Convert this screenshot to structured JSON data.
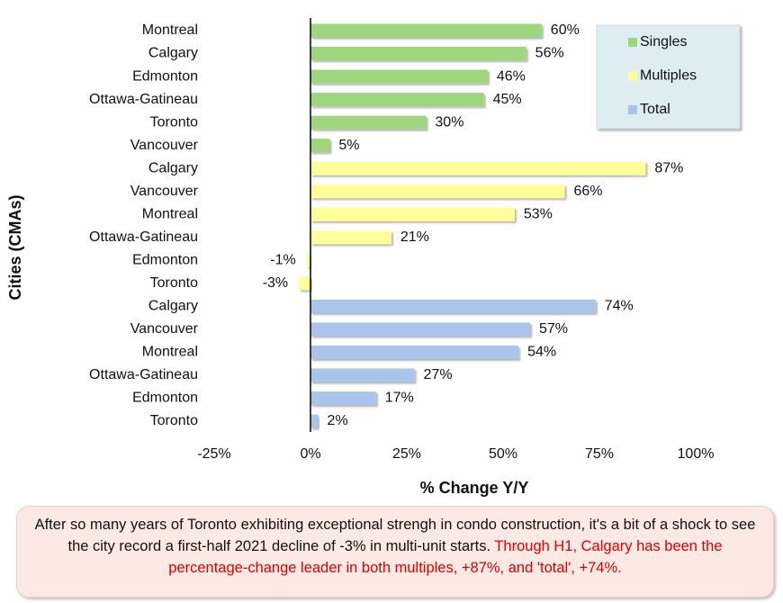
{
  "chart_data": {
    "type": "bar",
    "orientation": "horizontal",
    "categories": [
      "Montreal",
      "Calgary",
      "Edmonton",
      "Ottawa-Gatineau",
      "Toronto",
      "Vancouver",
      "Calgary",
      "Vancouver",
      "Montreal",
      "Ottawa-Gatineau",
      "Edmonton",
      "Toronto",
      "Calgary",
      "Vancouver",
      "Montreal",
      "Ottawa-Gatineau",
      "Edmonton",
      "Toronto"
    ],
    "series": [
      {
        "name": "Singles",
        "color": "#9dd67c",
        "values": [
          60,
          56,
          46,
          45,
          30,
          5,
          null,
          null,
          null,
          null,
          null,
          null,
          null,
          null,
          null,
          null,
          null,
          null
        ],
        "value_labels": [
          "60%",
          "56%",
          "46%",
          "45%",
          "30%",
          "5%",
          null,
          null,
          null,
          null,
          null,
          null,
          null,
          null,
          null,
          null,
          null,
          null
        ]
      },
      {
        "name": "Multiples",
        "color": "#ffff99",
        "values": [
          null,
          null,
          null,
          null,
          null,
          null,
          87,
          66,
          53,
          21,
          -1,
          -3,
          null,
          null,
          null,
          null,
          null,
          null
        ],
        "value_labels": [
          null,
          null,
          null,
          null,
          null,
          null,
          "87%",
          "66%",
          "53%",
          "21%",
          "-1%",
          "-3%",
          null,
          null,
          null,
          null,
          null,
          null
        ]
      },
      {
        "name": "Total",
        "color": "#a9c5ec",
        "values": [
          null,
          null,
          null,
          null,
          null,
          null,
          null,
          null,
          null,
          null,
          null,
          null,
          74,
          57,
          54,
          27,
          17,
          2
        ],
        "value_labels": [
          null,
          null,
          null,
          null,
          null,
          null,
          null,
          null,
          null,
          null,
          null,
          null,
          "74%",
          "57%",
          "54%",
          "27%",
          "17%",
          "2%"
        ]
      }
    ],
    "xlabel": "% Change Y/Y",
    "ylabel": "Cities (CMAs)",
    "xlim": [
      -25,
      100
    ],
    "xticks": [
      {
        "value": -25,
        "label": "-25%"
      },
      {
        "value": 0,
        "label": "0%"
      },
      {
        "value": 25,
        "label": "25%"
      },
      {
        "value": 50,
        "label": "50%"
      },
      {
        "value": 75,
        "label": "75%"
      },
      {
        "value": 100,
        "label": "100%"
      }
    ],
    "legend": "top-right"
  },
  "caption": {
    "text": "After so many years of Toronto exhibiting exceptional strengh in condo construction, it's a bit of a shock to see the city record a first-half 2021 decline of -3% in multi-unit starts.",
    "highlight": "Through H1, Calgary has been the percentage-change leader in both multiples, +87%, and 'total', +74%."
  }
}
